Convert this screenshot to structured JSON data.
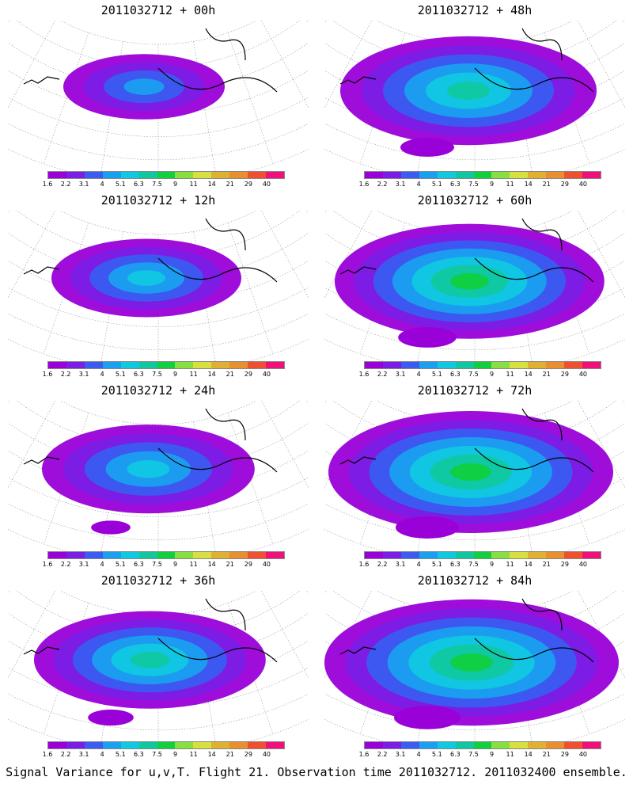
{
  "panels": [
    {
      "title": "2011032712 + 00h",
      "lead": "00h"
    },
    {
      "title": "2011032712 + 48h",
      "lead": "48h"
    },
    {
      "title": "2011032712 + 12h",
      "lead": "12h"
    },
    {
      "title": "2011032712 + 60h",
      "lead": "60h"
    },
    {
      "title": "2011032712 + 24h",
      "lead": "24h"
    },
    {
      "title": "2011032712 + 72h",
      "lead": "72h"
    },
    {
      "title": "2011032712 + 36h",
      "lead": "36h"
    },
    {
      "title": "2011032712 + 84h",
      "lead": "84h"
    }
  ],
  "colorbar": {
    "colors": [
      "#9a00d8",
      "#7a1ee6",
      "#3a5cf0",
      "#1aa0f0",
      "#10c8e0",
      "#10c8a0",
      "#10d040",
      "#88e040",
      "#d8e040",
      "#e0b030",
      "#e89030",
      "#f05030",
      "#f0107a"
    ],
    "labels": [
      "1.6",
      "2.2",
      "3.1",
      "4",
      "5.1",
      "6.3",
      "7.5",
      "9",
      "11",
      "14",
      "21",
      "29",
      "40"
    ]
  },
  "footer": "Signal Variance for u,v,T. Flight 21. Observation time 2011032712. 2011032400 ensemble."
}
